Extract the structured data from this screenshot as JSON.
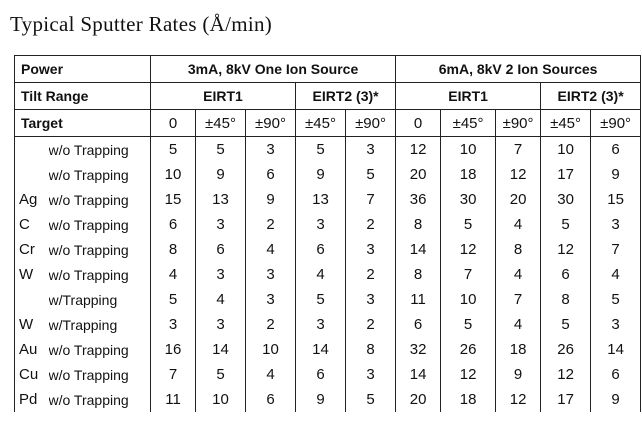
{
  "title": "Typical Sputter Rates (Å/min)",
  "table": {
    "header": {
      "power_label": "Power",
      "power": [
        "3mA, 8kV One Ion Source",
        "6mA, 8kV 2 Ion Sources"
      ],
      "tilt_label": "Tilt Range",
      "tilt": [
        "EIRT1",
        "EIRT2 (3)*",
        "EIRT1",
        "EIRT2 (3)*"
      ],
      "target_label": "Target",
      "angles": [
        "0",
        "±45°",
        "±90°",
        "±45°",
        "±90°",
        "0",
        "±45°",
        "±90°",
        "±45°",
        "±90°"
      ]
    },
    "rows": [
      {
        "target": null,
        "trapping": "w/o Trapping",
        "values": [
          5,
          5,
          3,
          5,
          3,
          12,
          10,
          7,
          10,
          6
        ]
      },
      {
        "target": null,
        "trapping": "w/o Trapping",
        "values": [
          10,
          9,
          6,
          9,
          5,
          20,
          18,
          12,
          17,
          9
        ]
      },
      {
        "target": "Ag",
        "trapping": "w/o Trapping",
        "values": [
          15,
          13,
          9,
          13,
          7,
          36,
          30,
          20,
          30,
          15
        ]
      },
      {
        "target": "C",
        "trapping": "w/o Trapping",
        "values": [
          6,
          3,
          2,
          3,
          2,
          8,
          5,
          4,
          5,
          3
        ]
      },
      {
        "target": "Cr",
        "trapping": "w/o Trapping",
        "values": [
          8,
          6,
          4,
          6,
          3,
          14,
          12,
          8,
          12,
          7
        ]
      },
      {
        "target": "W",
        "trapping": "w/o Trapping",
        "values": [
          4,
          3,
          3,
          4,
          2,
          8,
          7,
          4,
          6,
          4
        ]
      },
      {
        "target": null,
        "trapping": "w/Trapping",
        "values": [
          5,
          4,
          3,
          5,
          3,
          11,
          10,
          7,
          8,
          5
        ]
      },
      {
        "target": "W",
        "trapping": "w/Trapping",
        "values": [
          3,
          3,
          2,
          3,
          2,
          6,
          5,
          4,
          5,
          3
        ]
      },
      {
        "target": "Au",
        "trapping": "w/o Trapping",
        "values": [
          16,
          14,
          10,
          14,
          8,
          32,
          26,
          18,
          26,
          14
        ]
      },
      {
        "target": "Cu",
        "trapping": "w/o Trapping",
        "values": [
          7,
          5,
          4,
          6,
          3,
          14,
          12,
          9,
          12,
          6
        ]
      },
      {
        "target": "Pd",
        "trapping": "w/o Trapping",
        "values": [
          11,
          10,
          6,
          9,
          5,
          20,
          18,
          12,
          17,
          9
        ]
      }
    ]
  }
}
